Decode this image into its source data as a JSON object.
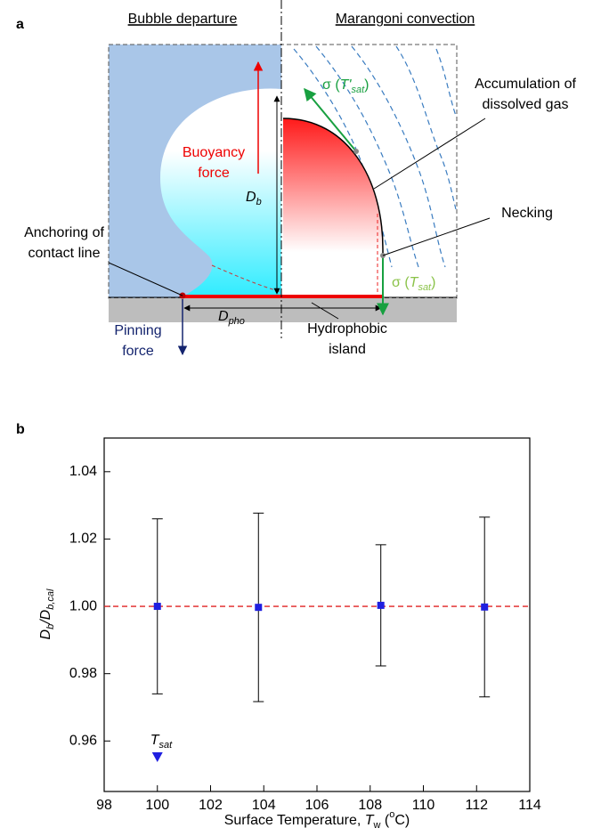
{
  "diagram": {
    "panel_label": "a",
    "left_title": "Bubble departure",
    "right_title": "Marangoni convection",
    "buoyancy": [
      "Buoyancy",
      "force"
    ],
    "db": [
      "D",
      "b"
    ],
    "sigma_top": [
      "σ (",
      "T'",
      "sat",
      ")"
    ],
    "accumulation": [
      "Accumulation of",
      "dissolved gas"
    ],
    "necking": "Necking",
    "sigma_bottom": [
      "σ (",
      "T",
      "sat",
      ")"
    ],
    "anchoring": [
      "Anchoring of",
      "contact line"
    ],
    "dpho": [
      "D",
      "pho"
    ],
    "pinning": [
      "Pinning",
      "force"
    ],
    "island": [
      "Hydrophobic",
      "island"
    ]
  },
  "chart_data": {
    "type": "scatter",
    "panel_label": "b",
    "x": [
      100,
      103.8,
      108.4,
      112.3
    ],
    "values": [
      1.0,
      0.9997,
      1.0003,
      0.9998
    ],
    "errors": [
      0.026,
      0.028,
      0.018,
      0.0267
    ],
    "color": "#1f1fe0",
    "reference_line": 1.0,
    "reference_color": "#e02020",
    "xlim": [
      98,
      114
    ],
    "xticks": [
      98,
      100,
      102,
      104,
      106,
      108,
      110,
      112,
      114
    ],
    "ylim": [
      0.945,
      1.05
    ],
    "yticks": [
      0.96,
      0.98,
      {
        "value": 1.0,
        "label": "1.00"
      },
      1.02,
      1.04
    ],
    "xlabel": [
      "Surface Temperature, ",
      "T",
      "w",
      " (",
      "o",
      "C)"
    ],
    "ylabel": [
      "D",
      "b",
      "/D",
      "b,cal"
    ],
    "annotation": {
      "x": 100,
      "y": 0.9553,
      "text": [
        "T",
        "sat"
      ]
    }
  }
}
